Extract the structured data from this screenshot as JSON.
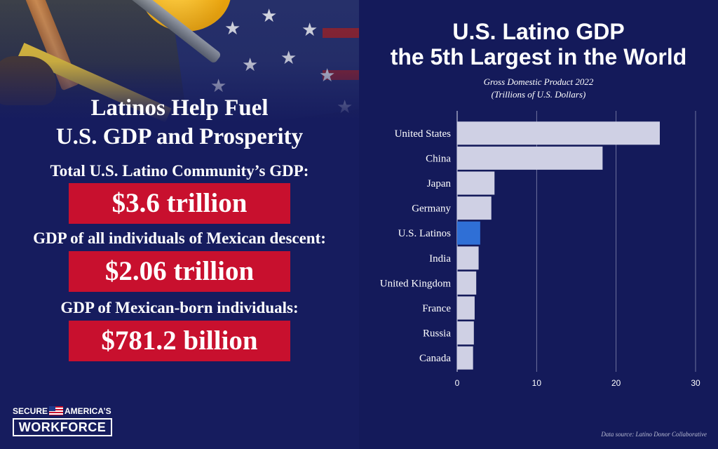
{
  "left": {
    "headline_line1": "Latinos Help Fuel",
    "headline_line2": "U.S. GDP and Prosperity",
    "stats": [
      {
        "caption": "Total U.S. Latino Community’s GDP:",
        "value": "$3.6 trillion"
      },
      {
        "caption": "GDP of all individuals of Mexican descent:",
        "value": "$2.06 trillion"
      },
      {
        "caption": "GDP of Mexican-born individuals:",
        "value": "$781.2 billion"
      }
    ],
    "logo": {
      "word1": "SECURE",
      "word2": "AMERICA’S",
      "word3": "WORKFORCE"
    }
  },
  "colors": {
    "bar": "#cfd0e4",
    "highlight": "#2f6fd6",
    "background": "#141a5a",
    "red": "#c8102e",
    "grid": "#d0d2e6"
  },
  "chart_data": {
    "type": "bar",
    "orientation": "horizontal",
    "title_line1": "U.S. Latino GDP",
    "title_line2": "the 5th Largest in the World",
    "subtitle_line1": "Gross Domestic Product 2022",
    "subtitle_line2": "(Trillions of U.S. Dollars)",
    "categories": [
      "United States",
      "China",
      "Japan",
      "Germany",
      "U.S. Latinos",
      "India",
      "United Kingdom",
      "France",
      "Russia",
      "Canada"
    ],
    "values": [
      25.5,
      18.3,
      4.7,
      4.3,
      2.9,
      2.7,
      2.4,
      2.2,
      2.1,
      2.0
    ],
    "highlight": "U.S. Latinos",
    "xlim": [
      0,
      30
    ],
    "xticks": [
      0,
      10,
      20,
      30
    ],
    "grid": true,
    "source": "Data source: Latino Donor Collaborative"
  }
}
